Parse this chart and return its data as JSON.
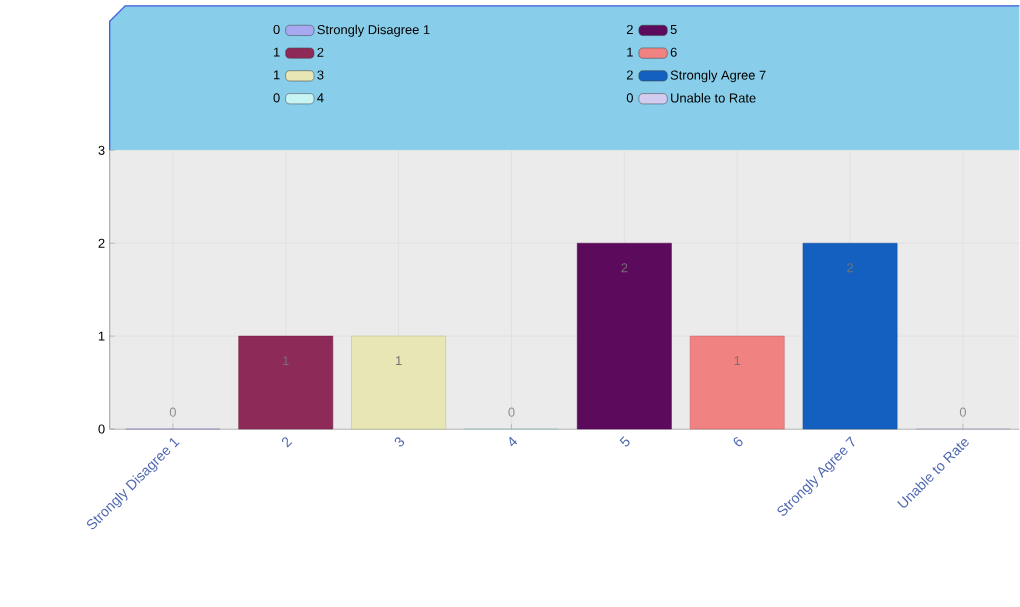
{
  "chart_data": {
    "type": "bar",
    "categories": [
      "Strongly Disagree 1",
      "2",
      "3",
      "4",
      "5",
      "6",
      "Strongly Agree 7",
      "Unable to Rate"
    ],
    "series": [
      {
        "name": "Strongly Disagree 1",
        "color": "#a8a8f0",
        "values": [
          0,
          null,
          null,
          null,
          null,
          null,
          null,
          null
        ]
      },
      {
        "name": "2",
        "color": "#8e2a58",
        "values": [
          null,
          1,
          null,
          null,
          null,
          null,
          null,
          null
        ]
      },
      {
        "name": "3",
        "color": "#e8e6b4",
        "values": [
          null,
          null,
          1,
          null,
          null,
          null,
          null,
          null
        ]
      },
      {
        "name": "4",
        "color": "#c8f4f4",
        "values": [
          null,
          null,
          null,
          0,
          null,
          null,
          null,
          null
        ]
      },
      {
        "name": "5",
        "color": "#5c0a5c",
        "values": [
          null,
          null,
          null,
          null,
          2,
          null,
          null,
          null
        ]
      },
      {
        "name": "6",
        "color": "#f08282",
        "values": [
          null,
          null,
          null,
          null,
          null,
          1,
          null,
          null
        ]
      },
      {
        "name": "Strongly Agree 7",
        "color": "#1460c0",
        "values": [
          null,
          null,
          null,
          null,
          null,
          null,
          2,
          null
        ]
      },
      {
        "name": "Unable to Rate",
        "color": "#d4ccf0",
        "values": [
          null,
          null,
          null,
          null,
          null,
          null,
          null,
          0
        ]
      }
    ],
    "ylim": [
      0,
      3
    ],
    "yticks": [
      0,
      1,
      2,
      3
    ],
    "annotations": [
      "0",
      "1",
      "1",
      "0",
      "2",
      "1",
      "2",
      "0"
    ],
    "grid": true,
    "data_labels": true,
    "legend": "top"
  }
}
